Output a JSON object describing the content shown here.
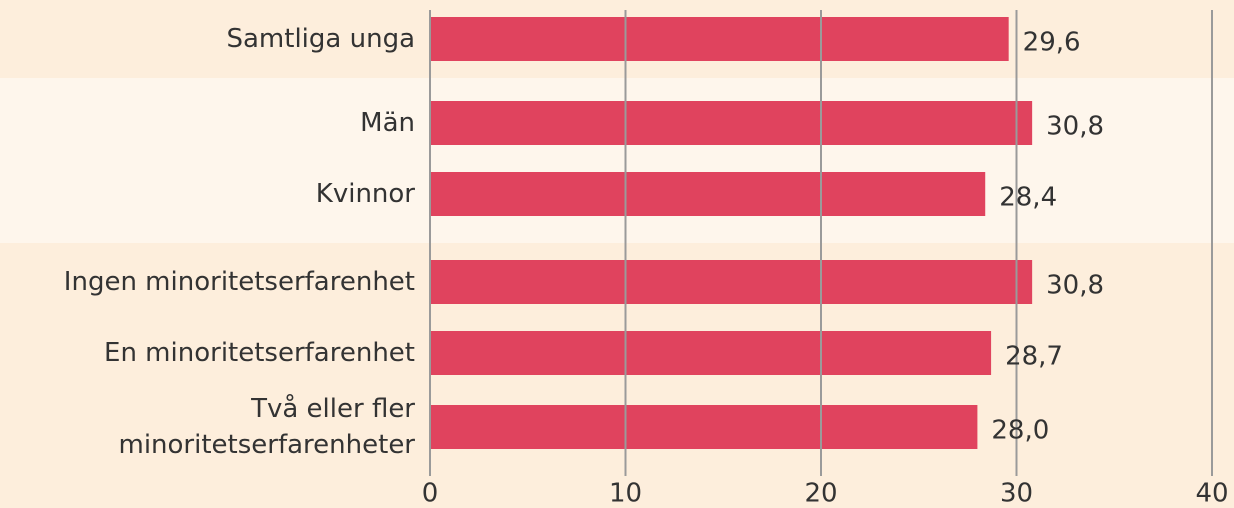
{
  "chart_data": {
    "type": "bar",
    "orientation": "horizontal",
    "categories": [
      "Samtliga unga",
      "Män",
      "Kvinnor",
      "Ingen minoritetserfarenhet",
      "En minoritetserfarenhet",
      "Två eller fler\nminoritetserfarenheter"
    ],
    "values": [
      29.6,
      30.8,
      28.4,
      30.8,
      28.7,
      28.0
    ],
    "value_labels": [
      "29,6",
      "30,8",
      "28,4",
      "30,8",
      "28,7",
      "28,0"
    ],
    "color": "#e0435e",
    "xlim": [
      0,
      40
    ],
    "xticks": [
      0,
      10,
      20,
      30,
      40
    ],
    "grid": true
  }
}
